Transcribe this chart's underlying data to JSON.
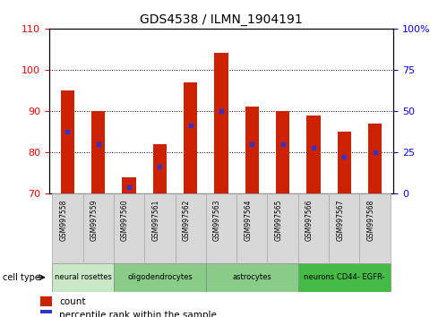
{
  "title": "GDS4538 / ILMN_1904191",
  "samples": [
    "GSM997558",
    "GSM997559",
    "GSM997560",
    "GSM997561",
    "GSM997562",
    "GSM997563",
    "GSM997564",
    "GSM997565",
    "GSM997566",
    "GSM997567",
    "GSM997568"
  ],
  "count_values": [
    95.0,
    90.0,
    74.0,
    82.0,
    97.0,
    104.0,
    91.0,
    90.0,
    89.0,
    85.0,
    87.0
  ],
  "percentile_values": [
    85.0,
    82.0,
    71.5,
    76.5,
    86.5,
    90.0,
    82.0,
    82.0,
    81.0,
    79.0,
    80.0
  ],
  "ylim": [
    70,
    110
  ],
  "yticks_left": [
    70,
    80,
    90,
    100,
    110
  ],
  "bar_color": "#cc2200",
  "marker_color": "#3333cc",
  "bar_width": 0.45,
  "group_defs": [
    {
      "start": 0,
      "end": 2,
      "label": "neural rosettes",
      "color": "#c8e8c8"
    },
    {
      "start": 2,
      "end": 5,
      "label": "oligodendrocytes",
      "color": "#88cc88"
    },
    {
      "start": 5,
      "end": 8,
      "label": "astrocytes",
      "color": "#88cc88"
    },
    {
      "start": 8,
      "end": 11,
      "label": "neurons CD44- EGFR-",
      "color": "#44bb44"
    }
  ]
}
